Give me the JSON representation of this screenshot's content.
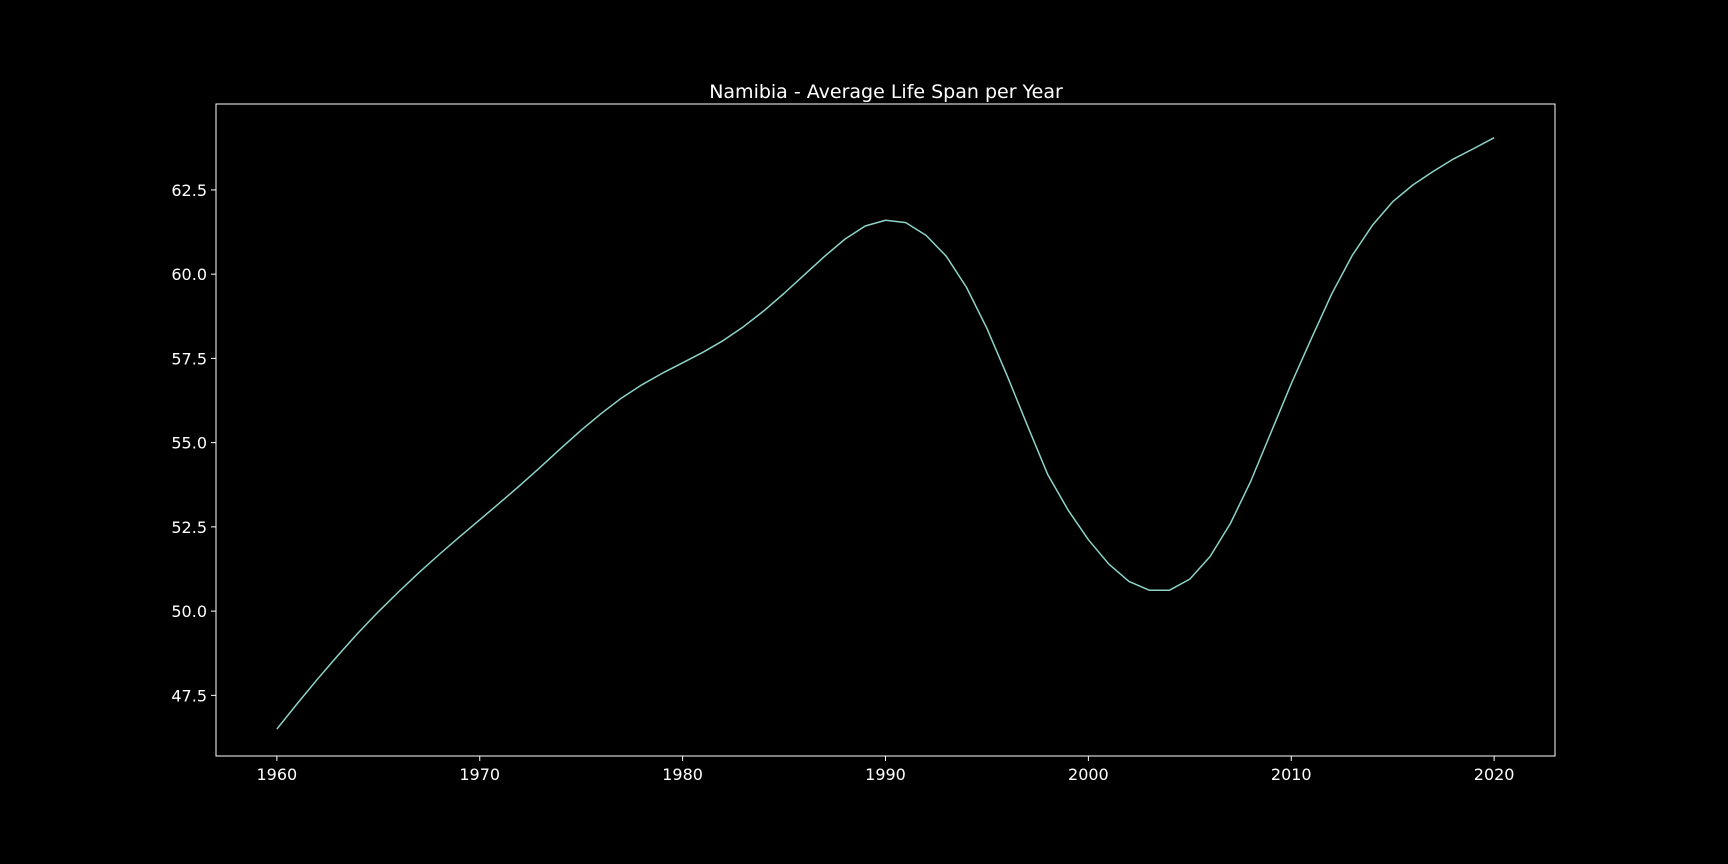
{
  "chart_data": {
    "type": "line",
    "title": "Namibia - Average Life Span per Year",
    "xlabel": "",
    "ylabel": "",
    "xlim": [
      1957,
      2023
    ],
    "ylim": [
      45.7,
      65.05
    ],
    "x_ticks": [
      1960,
      1970,
      1980,
      1990,
      2000,
      2010,
      2020
    ],
    "y_ticks": [
      47.5,
      50.0,
      52.5,
      55.0,
      57.5,
      60.0,
      62.5
    ],
    "grid": false,
    "colors": {
      "background": "#000000",
      "axes": "#ffffff",
      "line": "#8dd3c7",
      "text": "#ffffff"
    },
    "x": [
      1960,
      1961,
      1962,
      1963,
      1964,
      1965,
      1966,
      1967,
      1968,
      1969,
      1970,
      1971,
      1972,
      1973,
      1974,
      1975,
      1976,
      1977,
      1978,
      1979,
      1980,
      1981,
      1982,
      1983,
      1984,
      1985,
      1986,
      1987,
      1988,
      1989,
      1990,
      1991,
      1992,
      1993,
      1994,
      1995,
      1996,
      1997,
      1998,
      1999,
      2000,
      2001,
      2002,
      2003,
      2004,
      2005,
      2006,
      2007,
      2008,
      2009,
      2010,
      2011,
      2012,
      2013,
      2014,
      2015,
      2016,
      2017,
      2018,
      2019,
      2020
    ],
    "values": [
      46.5,
      47.25,
      47.98,
      48.68,
      49.35,
      49.98,
      50.57,
      51.14,
      51.68,
      52.2,
      52.71,
      53.22,
      53.74,
      54.28,
      54.83,
      55.37,
      55.87,
      56.33,
      56.72,
      57.06,
      57.37,
      57.68,
      58.03,
      58.44,
      58.91,
      59.43,
      59.98,
      60.53,
      61.04,
      61.43,
      61.6,
      61.53,
      61.15,
      60.53,
      59.6,
      58.39,
      56.98,
      55.5,
      54.05,
      53.0,
      52.12,
      51.4,
      50.88,
      50.62,
      50.62,
      50.95,
      51.62,
      52.6,
      53.85,
      55.3,
      56.75,
      58.1,
      59.42,
      60.55,
      61.45,
      62.15,
      62.65,
      63.05,
      63.42,
      63.73,
      64.05
    ],
    "series": [
      {
        "values": "see values"
      }
    ]
  }
}
